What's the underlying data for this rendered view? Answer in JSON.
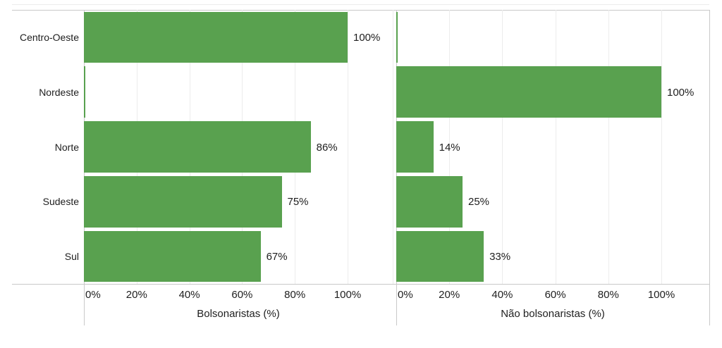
{
  "chart_data": {
    "type": "bar",
    "orientation": "horizontal",
    "title": "",
    "categories": [
      "Centro-Oeste",
      "Nordeste",
      "Norte",
      "Sudeste",
      "Sul"
    ],
    "series": [
      {
        "name": "Bolsonaristas (%)",
        "values": [
          100,
          0,
          86,
          75,
          67
        ],
        "value_labels": [
          "100%",
          "",
          "86%",
          "75%",
          "67%"
        ]
      },
      {
        "name": "Não bolsonaristas (%)",
        "values": [
          0,
          100,
          14,
          25,
          33
        ],
        "value_labels": [
          "",
          "100%",
          "14%",
          "25%",
          "33%"
        ]
      }
    ],
    "x_ticks": [
      "0%",
      "20%",
      "40%",
      "60%",
      "80%",
      "100%"
    ],
    "x_tick_values": [
      0,
      20,
      40,
      60,
      80,
      100
    ],
    "xlim": [
      0,
      100
    ],
    "grid": true,
    "legend": "none",
    "style": {
      "bar_color": "#59a14f",
      "grid_color": "#ececec",
      "axis_line_color": "#c9c9c9",
      "panel_edge_color": "#ececec",
      "label_color": "#1e1e1e"
    }
  }
}
